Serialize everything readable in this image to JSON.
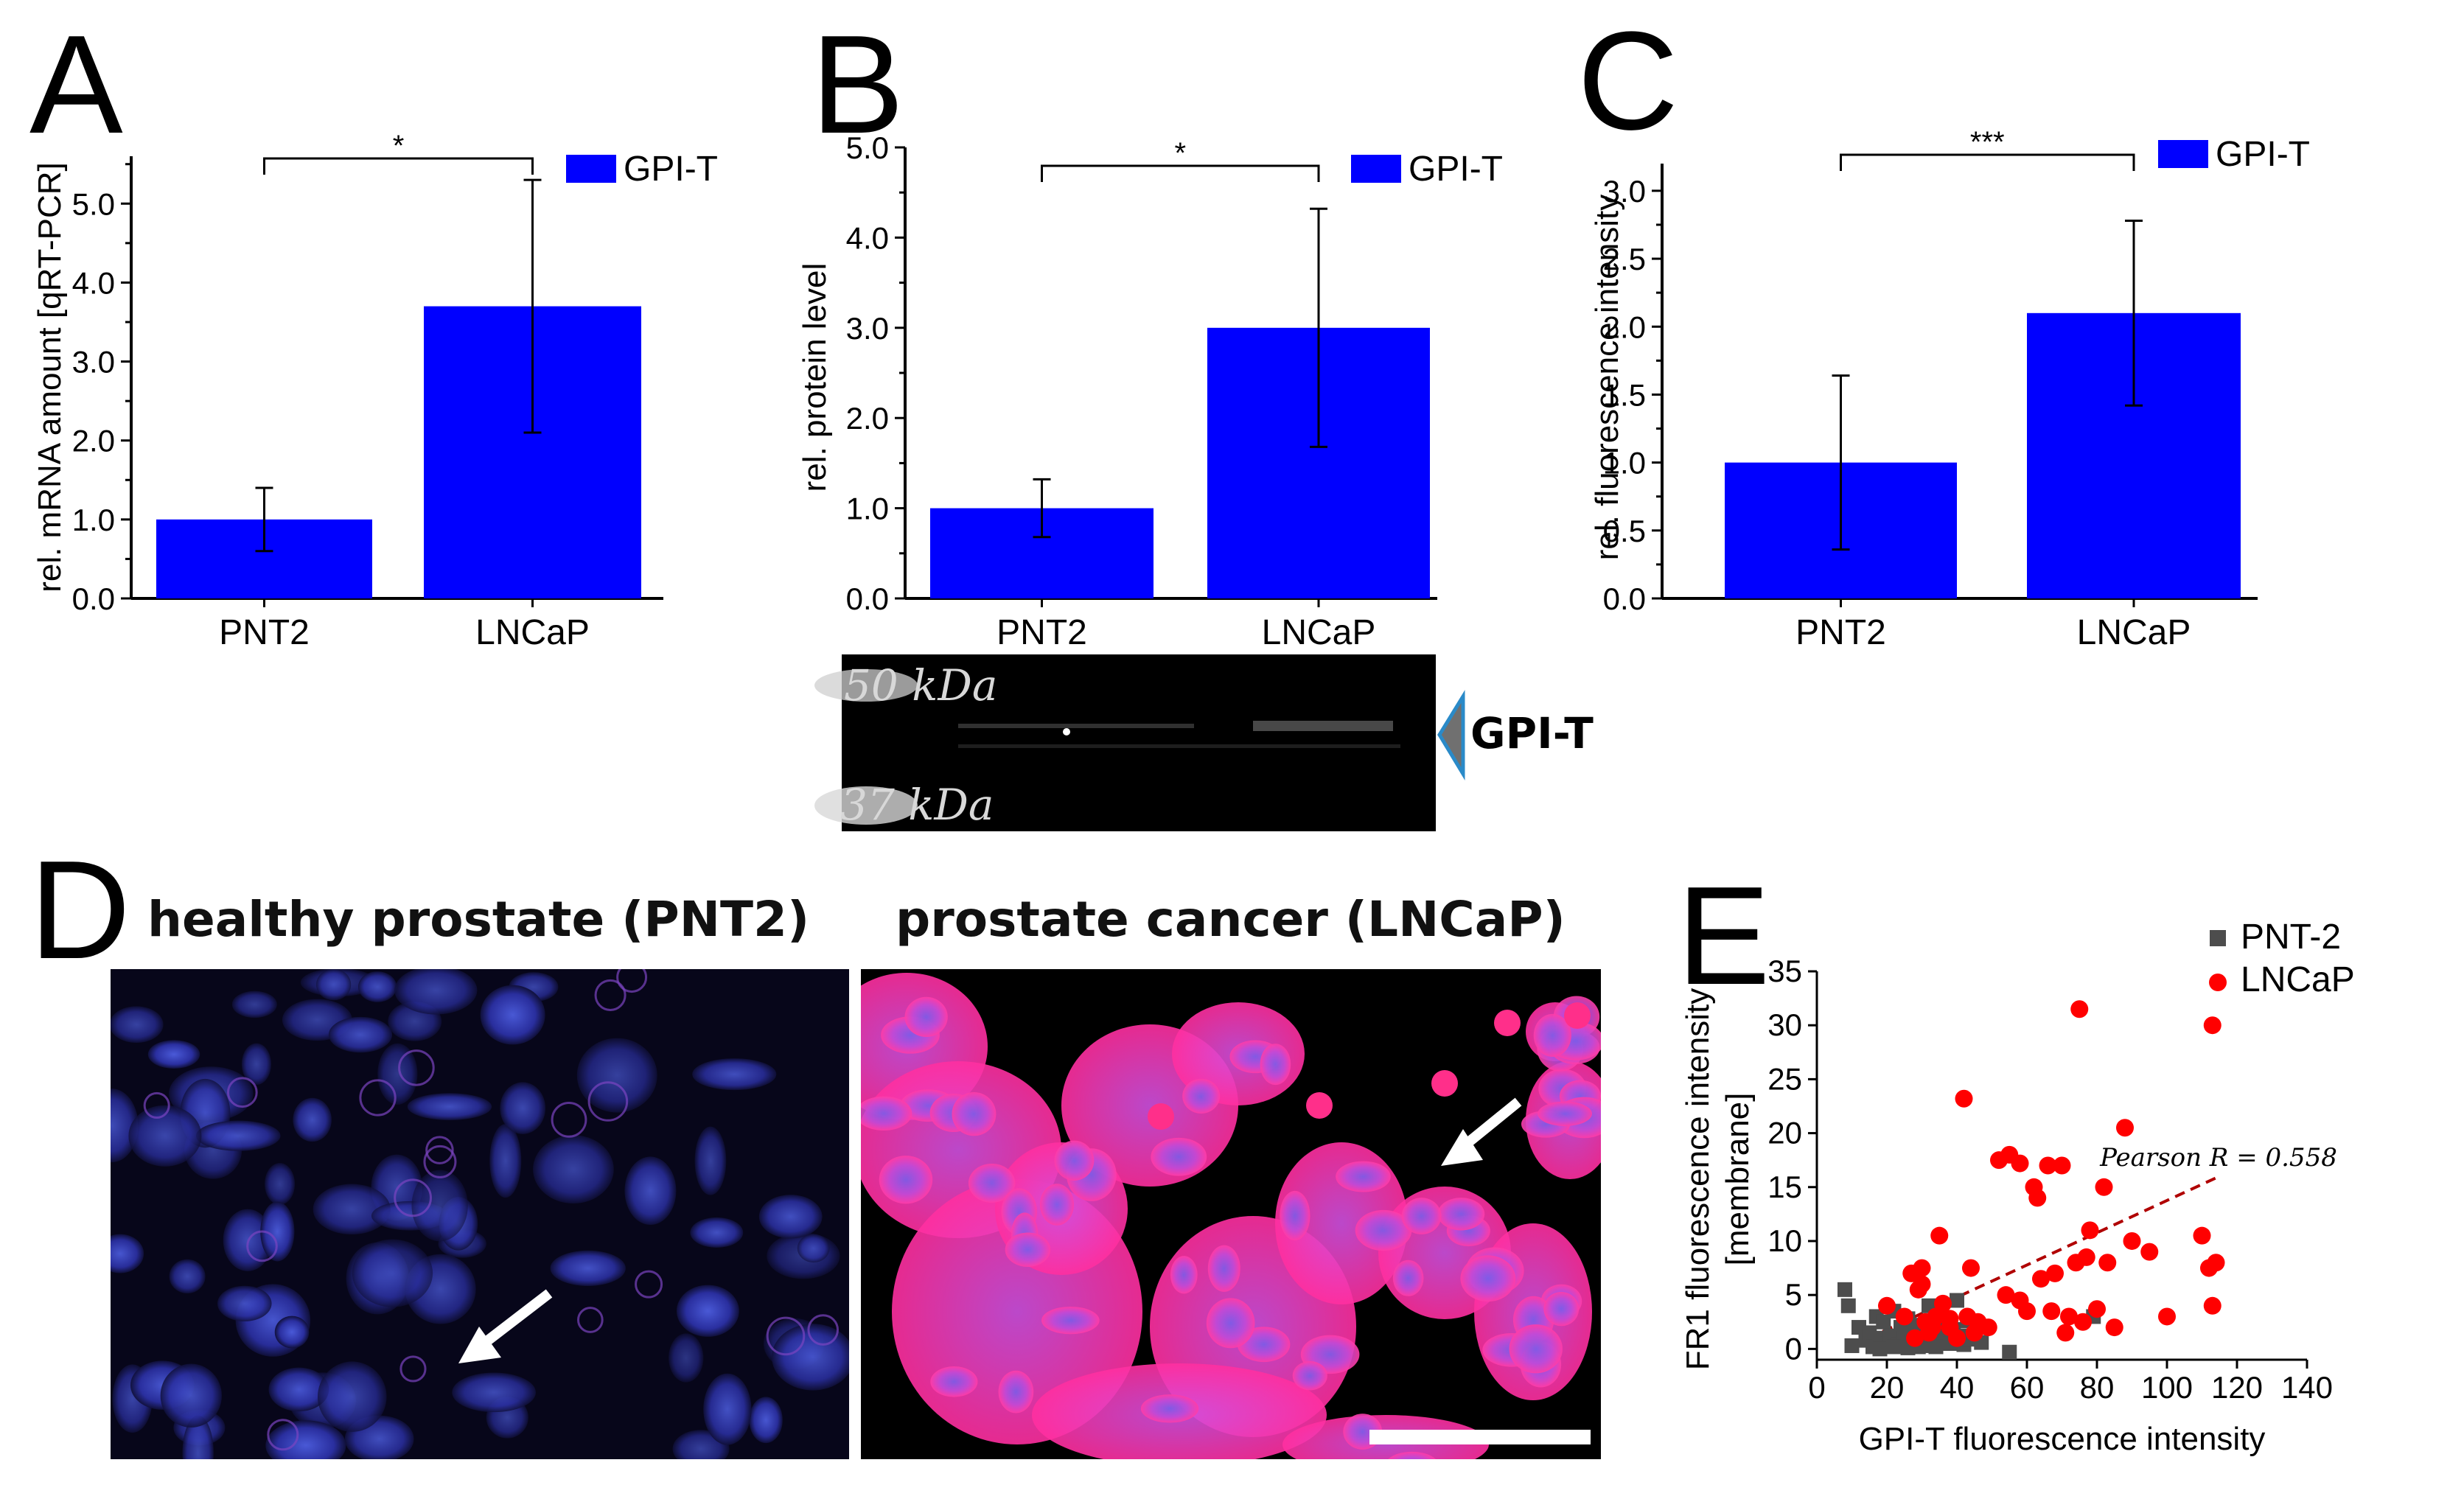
{
  "panels": {
    "A": {
      "letter": "A"
    },
    "B": {
      "letter": "B"
    },
    "C": {
      "letter": "C"
    },
    "D": {
      "letter": "D"
    },
    "E": {
      "letter": "E"
    }
  },
  "colors": {
    "bar": "#0000ff",
    "pnt2_points": "#4d4d4d",
    "lncap_points": "#ff0000",
    "regression": "#b00000"
  },
  "chart_data": [
    {
      "id": "A",
      "type": "bar",
      "categories": [
        "PNT2",
        "LNCaP"
      ],
      "series": [
        {
          "name": "GPI-T",
          "values": [
            1.0,
            3.7
          ],
          "errors": [
            0.4,
            1.6
          ]
        }
      ],
      "ylabel": "rel. mRNA amount [qRT-PCR]",
      "ylim": [
        0,
        5.6
      ],
      "yticks": [
        "0.0",
        "1.0",
        "2.0",
        "3.0",
        "4.0",
        "5.0"
      ],
      "significance": "*",
      "legend": "GPI-T"
    },
    {
      "id": "B",
      "type": "bar",
      "categories": [
        "PNT2",
        "LNCaP"
      ],
      "series": [
        {
          "name": "GPI-T",
          "values": [
            1.0,
            3.0
          ],
          "errors": [
            0.32,
            1.32
          ]
        }
      ],
      "ylabel": "rel. protein level",
      "ylim": [
        0,
        5.0
      ],
      "yticks": [
        "0.0",
        "1.0",
        "2.0",
        "3.0",
        "4.0",
        "5.0"
      ],
      "significance": "*",
      "legend": "GPI-T"
    },
    {
      "id": "C",
      "type": "bar",
      "categories": [
        "PNT2",
        "LNCaP"
      ],
      "series": [
        {
          "name": "GPI-T",
          "values": [
            1.0,
            2.1
          ],
          "errors": [
            0.64,
            0.68
          ]
        }
      ],
      "ylabel": "rel. fluorescence intensity",
      "ylim": [
        0,
        3.2
      ],
      "yticks": [
        "0.0",
        "0.5",
        "1.0",
        "1.5",
        "2.0",
        "2.5",
        "3.0"
      ],
      "significance": "***",
      "legend": "GPI-T"
    },
    {
      "id": "E",
      "type": "scatter",
      "xlabel": "GPI-T fluorescence intensity",
      "ylabel_line1": "FR1 fluorescence intensity",
      "ylabel_line2": "[membrane]",
      "xlim": [
        0,
        140
      ],
      "ylim": [
        -1,
        35
      ],
      "xticks": [
        "0",
        "20",
        "40",
        "60",
        "80",
        "100",
        "120",
        "140"
      ],
      "yticks": [
        "0",
        "5",
        "10",
        "15",
        "20",
        "25",
        "30",
        "35"
      ],
      "annotation": "Pearson R = 0.558",
      "regression": {
        "x1": 10,
        "y1": 0.3,
        "x2": 115,
        "y2": 16
      },
      "series": [
        {
          "name": "PNT-2",
          "marker": "square",
          "points": [
            [
              8,
              5.5
            ],
            [
              9,
              4
            ],
            [
              10,
              0.3
            ],
            [
              12,
              2
            ],
            [
              14,
              0.8
            ],
            [
              15,
              1.5
            ],
            [
              16,
              0.2
            ],
            [
              17,
              3
            ],
            [
              18,
              1
            ],
            [
              19,
              2.5
            ],
            [
              20,
              0.5
            ],
            [
              21,
              1.2
            ],
            [
              22,
              3.5
            ],
            [
              23,
              0.4
            ],
            [
              24,
              2
            ],
            [
              25,
              1
            ],
            [
              26,
              2.8
            ],
            [
              27,
              0.6
            ],
            [
              28,
              1.6
            ],
            [
              29,
              0.2
            ],
            [
              30,
              2.2
            ],
            [
              31,
              0.8
            ],
            [
              32,
              4
            ],
            [
              33,
              1.4
            ],
            [
              34,
              0.3
            ],
            [
              35,
              3
            ],
            [
              36,
              1
            ],
            [
              37,
              2
            ],
            [
              38,
              0.5
            ],
            [
              39,
              1.8
            ],
            [
              40,
              4.5
            ],
            [
              41,
              1.2
            ],
            [
              42,
              0.4
            ],
            [
              43,
              2.6
            ],
            [
              44,
              0.9
            ],
            [
              45,
              1.5
            ],
            [
              18,
              0
            ],
            [
              26,
              0.1
            ],
            [
              34,
              0.2
            ],
            [
              47,
              0.6
            ],
            [
              55,
              -0.3
            ],
            [
              79,
              3
            ],
            [
              30,
              0.3
            ],
            [
              22,
              0.2
            ]
          ]
        },
        {
          "name": "LNCaP",
          "marker": "circle",
          "points": [
            [
              20,
              4
            ],
            [
              25,
              3
            ],
            [
              27,
              7
            ],
            [
              28,
              1
            ],
            [
              29,
              5.5
            ],
            [
              30,
              6
            ],
            [
              30,
              7.5
            ],
            [
              31,
              2.5
            ],
            [
              32,
              1.5
            ],
            [
              33,
              2
            ],
            [
              34,
              3
            ],
            [
              35,
              10.5
            ],
            [
              36,
              4.2
            ],
            [
              38,
              2
            ],
            [
              40,
              1
            ],
            [
              42,
              23.2
            ],
            [
              43,
              3
            ],
            [
              44,
              7.5
            ],
            [
              45,
              1.5
            ],
            [
              46,
              2.5
            ],
            [
              49,
              2
            ],
            [
              52,
              17.5
            ],
            [
              54,
              5
            ],
            [
              55,
              18
            ],
            [
              58,
              4.5
            ],
            [
              60,
              3.5
            ],
            [
              62,
              15
            ],
            [
              63,
              14
            ],
            [
              64,
              6.5
            ],
            [
              66,
              17
            ],
            [
              67,
              3.5
            ],
            [
              68,
              7
            ],
            [
              70,
              17
            ],
            [
              71,
              1.5
            ],
            [
              72,
              3
            ],
            [
              74,
              8
            ],
            [
              75,
              31.5
            ],
            [
              76,
              2.5
            ],
            [
              77,
              8.5
            ],
            [
              78,
              11
            ],
            [
              80,
              3.7
            ],
            [
              82,
              15
            ],
            [
              83,
              8
            ],
            [
              85,
              2
            ],
            [
              88,
              20.5
            ],
            [
              90,
              10
            ],
            [
              95,
              9
            ],
            [
              100,
              3
            ],
            [
              110,
              10.5
            ],
            [
              112,
              7.5
            ],
            [
              113,
              30
            ],
            [
              113,
              4
            ],
            [
              114,
              8
            ],
            [
              58,
              17.2
            ],
            [
              38,
              2.8
            ]
          ]
        }
      ]
    }
  ],
  "blot": {
    "marker_50": "50 kDa",
    "marker_37": "37 kDa",
    "band_label": "GPI-T"
  },
  "micrographs": {
    "left_title": "healthy prostate (PNT2)",
    "right_title": "prostate cancer (LNCaP)"
  }
}
